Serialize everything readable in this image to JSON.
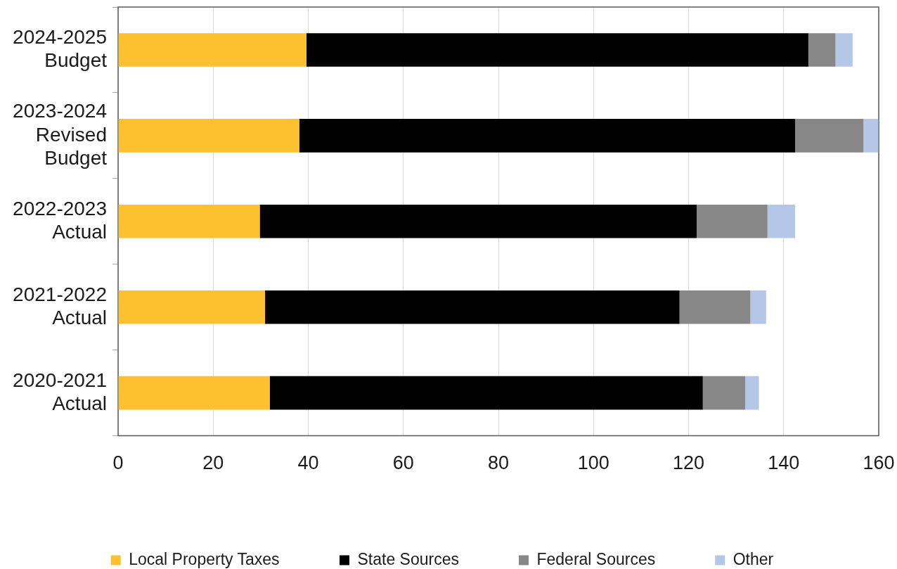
{
  "chart_data": {
    "type": "bar",
    "orientation": "horizontal",
    "stacked": true,
    "categories": [
      "2024-2025 Budget",
      "2023-2024 Revised Budget",
      "2022-2023 Actual",
      "2021-2022 Actual",
      "2020-2021 Actual"
    ],
    "series": [
      {
        "name": "Local Property Taxes",
        "color": "#fdc02f",
        "values": [
          39.6,
          38.1,
          29.8,
          30.9,
          31.9
        ]
      },
      {
        "name": "State Sources",
        "color": "#000000",
        "values": [
          105.6,
          104.3,
          91.9,
          87.2,
          91.1
        ]
      },
      {
        "name": "Federal Sources",
        "color": "#878787",
        "values": [
          5.7,
          14.4,
          14.9,
          14.9,
          8.9
        ]
      },
      {
        "name": "Other",
        "color": "#b4c7e7",
        "values": [
          3.6,
          3.1,
          5.8,
          3.3,
          2.9
        ]
      }
    ],
    "xlim": [
      0,
      160
    ],
    "xticks": [
      0,
      20,
      40,
      60,
      80,
      100,
      120,
      140,
      160
    ],
    "grid": "x",
    "legend": "bottom"
  }
}
